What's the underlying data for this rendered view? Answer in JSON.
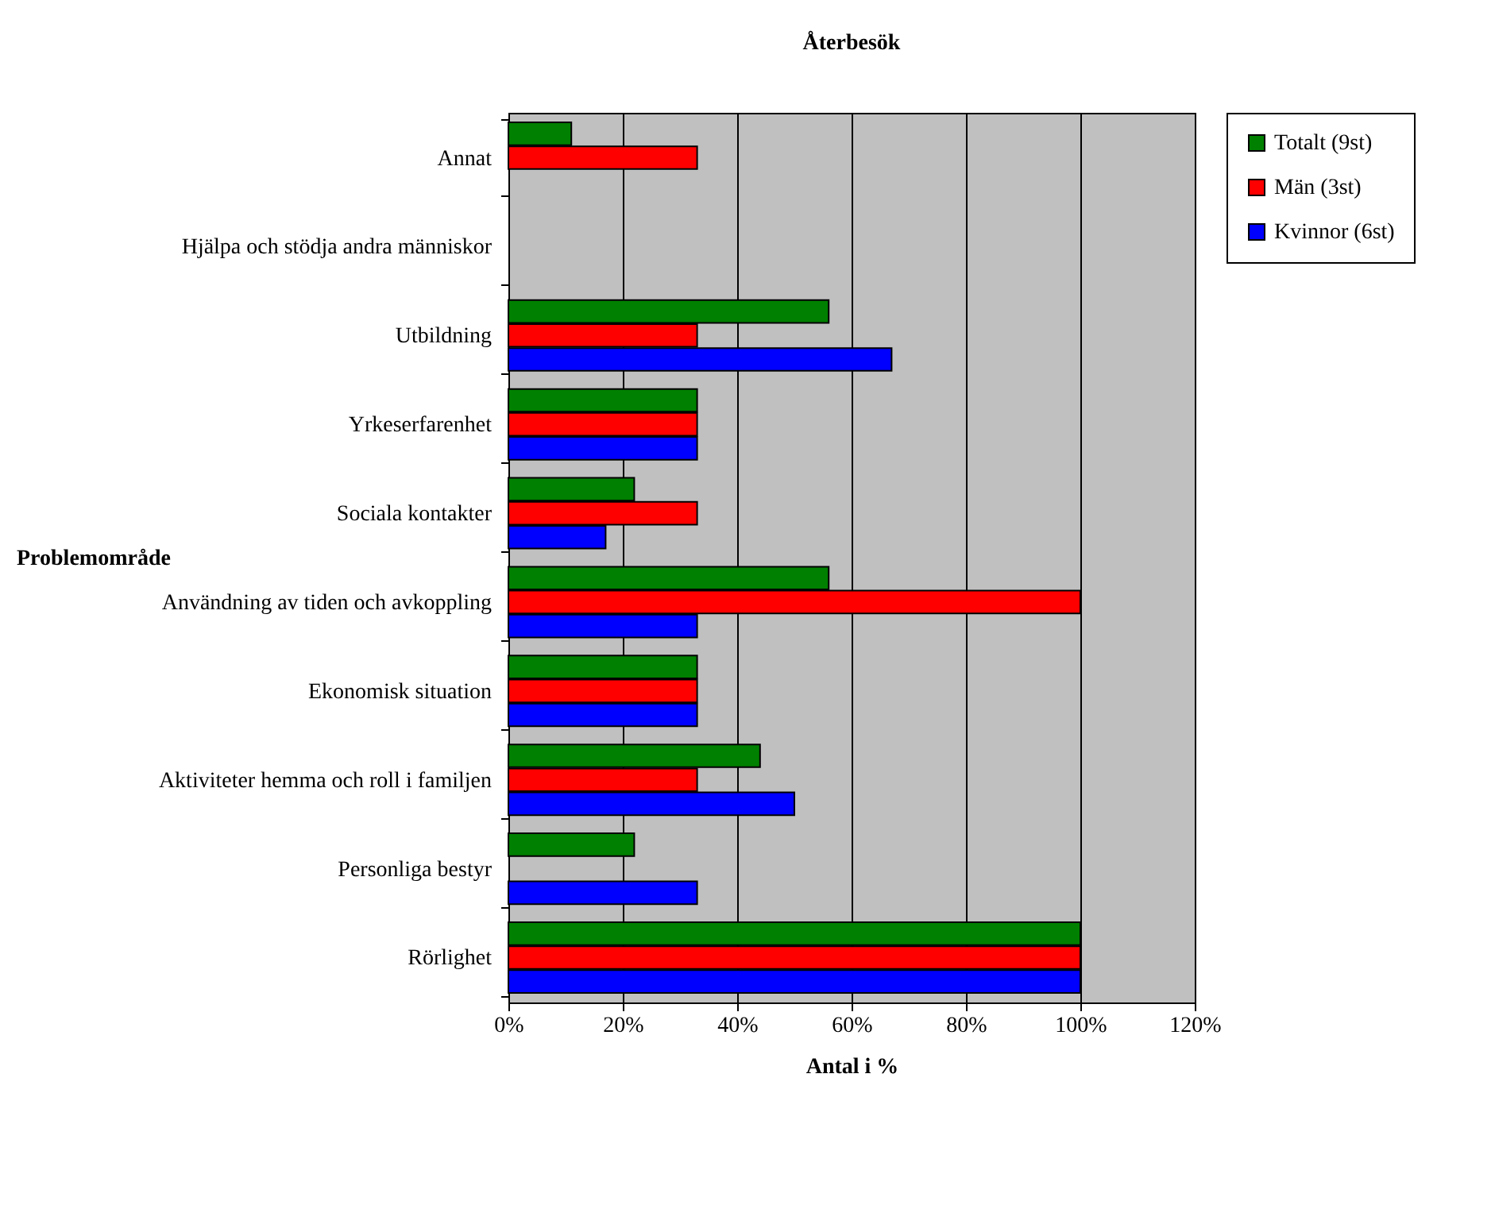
{
  "chart_data": {
    "type": "bar",
    "orientation": "horizontal",
    "title": "Återbesök",
    "xlabel": "Antal i %",
    "ylabel": "Problemområde",
    "categories": [
      "Annat",
      "Hjälpa och stödja andra människor",
      "Utbildning",
      "Yrkeserfarenhet",
      "Sociala kontakter",
      "Användning av tiden och avkoppling",
      "Ekonomisk situation",
      "Aktiviteter hemma och roll i familjen",
      "Personliga bestyr",
      "Rörlighet"
    ],
    "series": [
      {
        "name": "Totalt (9st)",
        "color": "#008000",
        "values": [
          11,
          null,
          56,
          33,
          22,
          56,
          33,
          44,
          22,
          100
        ]
      },
      {
        "name": "Män (3st)",
        "color": "#ff0000",
        "values": [
          33,
          null,
          33,
          33,
          33,
          100,
          33,
          33,
          null,
          100
        ]
      },
      {
        "name": "Kvinnor (6st)",
        "color": "#0000ff",
        "values": [
          null,
          null,
          67,
          33,
          17,
          33,
          33,
          50,
          33,
          100
        ]
      }
    ],
    "xlim": [
      0,
      120
    ],
    "xticks": [
      {
        "value": 0,
        "label": "0%"
      },
      {
        "value": 20,
        "label": "20%"
      },
      {
        "value": 40,
        "label": "40%"
      },
      {
        "value": 60,
        "label": "60%"
      },
      {
        "value": 80,
        "label": "80%"
      },
      {
        "value": 100,
        "label": "100%"
      },
      {
        "value": 120,
        "label": "120%"
      }
    ],
    "grid": "x",
    "legend": "right"
  }
}
